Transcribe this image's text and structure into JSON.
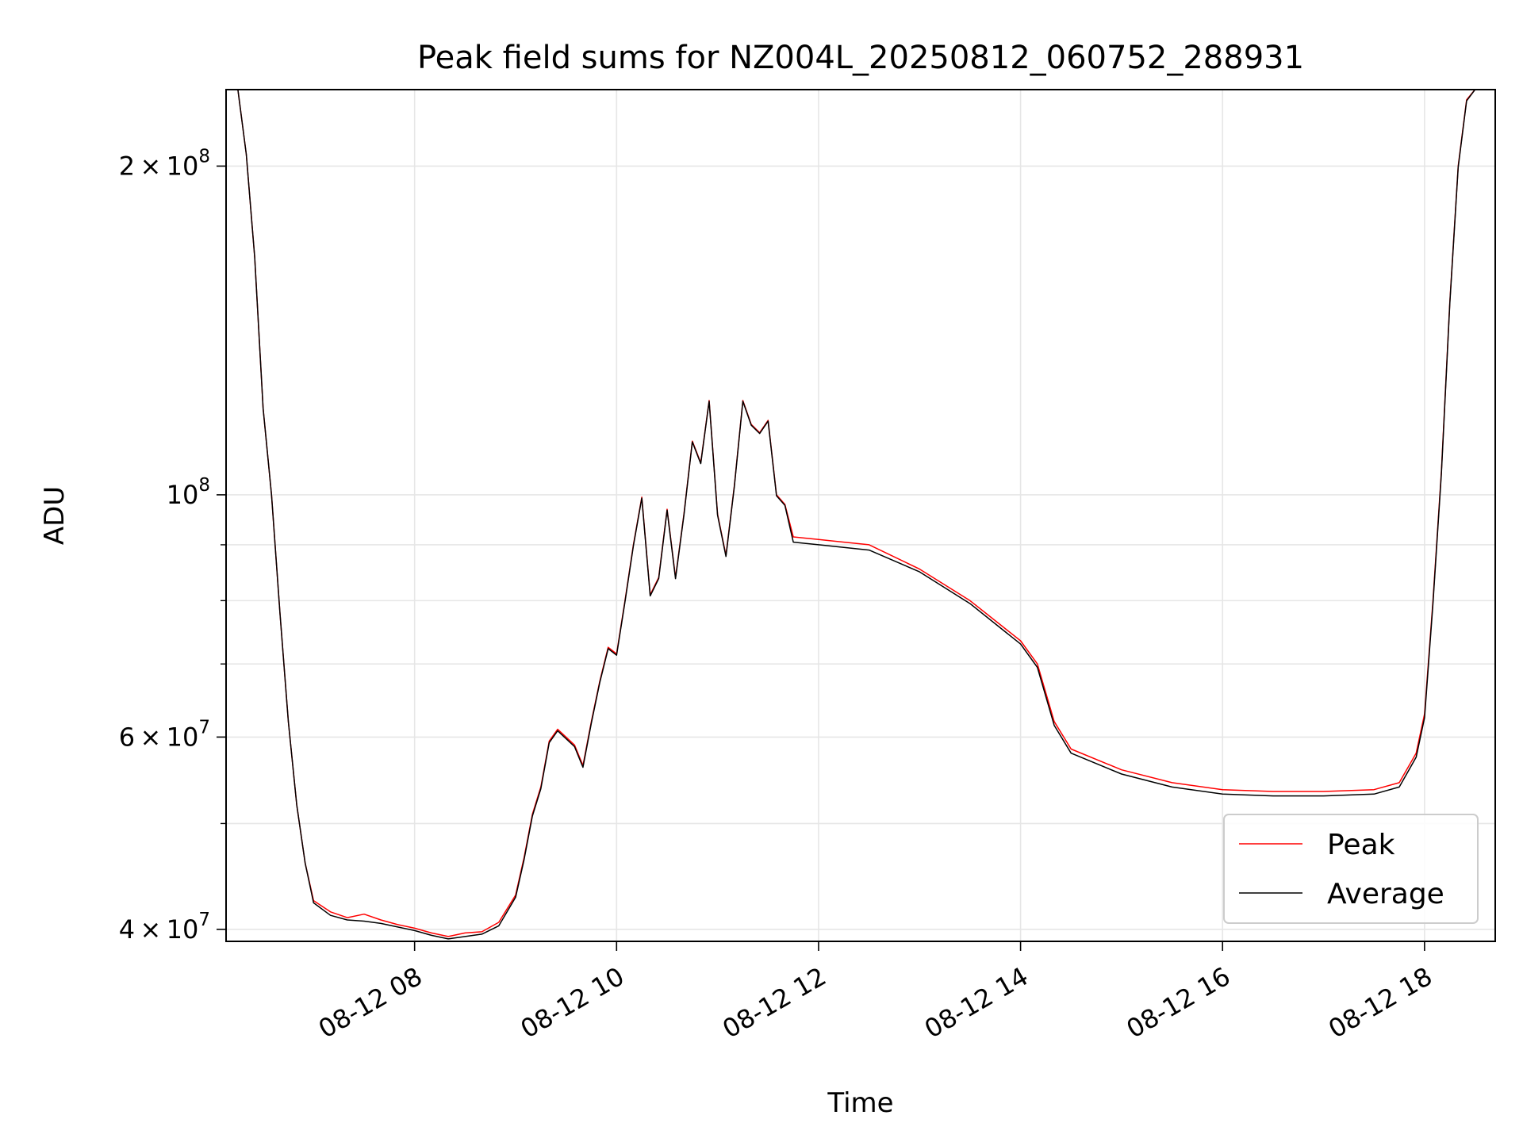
{
  "chart_data": {
    "type": "line",
    "title": "Peak field sums for NZ004L_20250812_060752_288931",
    "xlabel": "Time",
    "ylabel": "ADU",
    "y_scale": "log",
    "x_unit": "hours on 2025-08-12",
    "xlim": [
      "08-12 06:08",
      "08-12 18:42"
    ],
    "ylim": [
      39000000,
      235000000
    ],
    "x_ticks": [
      "08-12 08",
      "08-12 10",
      "08-12 12",
      "08-12 14",
      "08-12 16",
      "08-12 18"
    ],
    "y_ticks": [
      {
        "value": 40000000,
        "base": "4",
        "exp": "7"
      },
      {
        "value": 60000000,
        "base": "6",
        "exp": "7"
      },
      {
        "value": 100000000,
        "base": "10",
        "exp": "8",
        "power_only": true
      },
      {
        "value": 200000000,
        "base": "2",
        "exp": "8"
      }
    ],
    "grid": true,
    "legend_position": "lower-right",
    "series": [
      {
        "name": "Peak",
        "color": "#ff0000",
        "points": [
          [
            "08-12 06:10",
            236000000
          ],
          [
            "08-12 06:15",
            235000000
          ],
          [
            "08-12 06:20",
            205000000
          ],
          [
            "08-12 06:25",
            165000000
          ],
          [
            "08-12 06:30",
            120000000
          ],
          [
            "08-12 06:35",
            100000000
          ],
          [
            "08-12 06:40",
            78000000
          ],
          [
            "08-12 06:45",
            62000000
          ],
          [
            "08-12 06:50",
            52000000
          ],
          [
            "08-12 06:55",
            46000000
          ],
          [
            "08-12 07:00",
            42500000
          ],
          [
            "08-12 07:10",
            41500000
          ],
          [
            "08-12 07:20",
            41000000
          ],
          [
            "08-12 07:30",
            41300000
          ],
          [
            "08-12 07:40",
            40800000
          ],
          [
            "08-12 07:50",
            40400000
          ],
          [
            "08-12 08:00",
            40100000
          ],
          [
            "08-12 08:10",
            39700000
          ],
          [
            "08-12 08:20",
            39400000
          ],
          [
            "08-12 08:30",
            39700000
          ],
          [
            "08-12 08:40",
            39800000
          ],
          [
            "08-12 08:50",
            40600000
          ],
          [
            "08-12 09:00",
            43000000
          ],
          [
            "08-12 09:05",
            46500000
          ],
          [
            "08-12 09:10",
            51000000
          ],
          [
            "08-12 09:15",
            54000000
          ],
          [
            "08-12 09:20",
            59500000
          ],
          [
            "08-12 09:25",
            61000000
          ],
          [
            "08-12 09:30",
            60000000
          ],
          [
            "08-12 09:35",
            59000000
          ],
          [
            "08-12 09:40",
            56500000
          ],
          [
            "08-12 09:45",
            62000000
          ],
          [
            "08-12 09:50",
            67500000
          ],
          [
            "08-12 09:55",
            72500000
          ],
          [
            "08-12 10:00",
            71500000
          ],
          [
            "08-12 10:05",
            80000000
          ],
          [
            "08-12 10:10",
            90000000
          ],
          [
            "08-12 10:15",
            99500000
          ],
          [
            "08-12 10:20",
            81000000
          ],
          [
            "08-12 10:25",
            84000000
          ],
          [
            "08-12 10:30",
            97000000
          ],
          [
            "08-12 10:35",
            84000000
          ],
          [
            "08-12 10:40",
            96000000
          ],
          [
            "08-12 10:45",
            112000000
          ],
          [
            "08-12 10:50",
            107000000
          ],
          [
            "08-12 10:55",
            122000000
          ],
          [
            "08-12 11:00",
            96000000
          ],
          [
            "08-12 11:05",
            88000000
          ],
          [
            "08-12 11:10",
            102000000
          ],
          [
            "08-12 11:15",
            122000000
          ],
          [
            "08-12 11:20",
            116000000
          ],
          [
            "08-12 11:25",
            114000000
          ],
          [
            "08-12 11:30",
            117000000
          ],
          [
            "08-12 11:35",
            100000000
          ],
          [
            "08-12 11:40",
            98000000
          ],
          [
            "08-12 11:45",
            91500000
          ],
          [
            "08-12 12:00",
            91000000
          ],
          [
            "08-12 12:15",
            90500000
          ],
          [
            "08-12 12:30",
            90000000
          ],
          [
            "08-12 13:00",
            85500000
          ],
          [
            "08-12 13:30",
            80000000
          ],
          [
            "08-12 14:00",
            73500000
          ],
          [
            "08-12 14:10",
            70000000
          ],
          [
            "08-12 14:20",
            62000000
          ],
          [
            "08-12 14:30",
            58500000
          ],
          [
            "08-12 15:00",
            56000000
          ],
          [
            "08-12 15:30",
            54500000
          ],
          [
            "08-12 16:00",
            53700000
          ],
          [
            "08-12 16:30",
            53500000
          ],
          [
            "08-12 17:00",
            53500000
          ],
          [
            "08-12 17:30",
            53700000
          ],
          [
            "08-12 17:45",
            54500000
          ],
          [
            "08-12 17:55",
            58000000
          ],
          [
            "08-12 18:00",
            63000000
          ],
          [
            "08-12 18:05",
            80000000
          ],
          [
            "08-12 18:10",
            105000000
          ],
          [
            "08-12 18:15",
            150000000
          ],
          [
            "08-12 18:20",
            200000000
          ],
          [
            "08-12 18:25",
            230000000
          ],
          [
            "08-12 18:30",
            236000000
          ],
          [
            "08-12 18:40",
            236000000
          ]
        ]
      },
      {
        "name": "Average",
        "color": "#000000",
        "points": [
          [
            "08-12 06:10",
            236000000
          ],
          [
            "08-12 06:15",
            235000000
          ],
          [
            "08-12 06:20",
            205000000
          ],
          [
            "08-12 06:25",
            165000000
          ],
          [
            "08-12 06:30",
            120000000
          ],
          [
            "08-12 06:35",
            100000000
          ],
          [
            "08-12 06:40",
            78000000
          ],
          [
            "08-12 06:45",
            62000000
          ],
          [
            "08-12 06:50",
            52000000
          ],
          [
            "08-12 06:55",
            46000000
          ],
          [
            "08-12 07:00",
            42300000
          ],
          [
            "08-12 07:10",
            41200000
          ],
          [
            "08-12 07:20",
            40800000
          ],
          [
            "08-12 07:30",
            40700000
          ],
          [
            "08-12 07:40",
            40500000
          ],
          [
            "08-12 07:50",
            40200000
          ],
          [
            "08-12 08:00",
            39900000
          ],
          [
            "08-12 08:10",
            39500000
          ],
          [
            "08-12 08:20",
            39200000
          ],
          [
            "08-12 08:30",
            39400000
          ],
          [
            "08-12 08:40",
            39600000
          ],
          [
            "08-12 08:50",
            40300000
          ],
          [
            "08-12 09:00",
            42800000
          ],
          [
            "08-12 09:05",
            46300000
          ],
          [
            "08-12 09:10",
            50800000
          ],
          [
            "08-12 09:15",
            53800000
          ],
          [
            "08-12 09:20",
            59300000
          ],
          [
            "08-12 09:25",
            60800000
          ],
          [
            "08-12 09:30",
            59800000
          ],
          [
            "08-12 09:35",
            58800000
          ],
          [
            "08-12 09:40",
            56300000
          ],
          [
            "08-12 09:45",
            61800000
          ],
          [
            "08-12 09:50",
            67300000
          ],
          [
            "08-12 09:55",
            72300000
          ],
          [
            "08-12 10:00",
            71300000
          ],
          [
            "08-12 10:05",
            79800000
          ],
          [
            "08-12 10:10",
            89800000
          ],
          [
            "08-12 10:15",
            99300000
          ],
          [
            "08-12 10:20",
            80800000
          ],
          [
            "08-12 10:25",
            83800000
          ],
          [
            "08-12 10:30",
            96800000
          ],
          [
            "08-12 10:35",
            83800000
          ],
          [
            "08-12 10:40",
            95800000
          ],
          [
            "08-12 10:45",
            111800000
          ],
          [
            "08-12 10:50",
            106800000
          ],
          [
            "08-12 10:55",
            121800000
          ],
          [
            "08-12 11:00",
            95800000
          ],
          [
            "08-12 11:05",
            87800000
          ],
          [
            "08-12 11:10",
            101800000
          ],
          [
            "08-12 11:15",
            121800000
          ],
          [
            "08-12 11:20",
            115800000
          ],
          [
            "08-12 11:25",
            113800000
          ],
          [
            "08-12 11:30",
            116800000
          ],
          [
            "08-12 11:35",
            99800000
          ],
          [
            "08-12 11:40",
            97800000
          ],
          [
            "08-12 11:45",
            90500000
          ],
          [
            "08-12 12:00",
            90000000
          ],
          [
            "08-12 12:15",
            89500000
          ],
          [
            "08-12 12:30",
            89000000
          ],
          [
            "08-12 13:00",
            85000000
          ],
          [
            "08-12 13:30",
            79500000
          ],
          [
            "08-12 14:00",
            73000000
          ],
          [
            "08-12 14:10",
            69500000
          ],
          [
            "08-12 14:20",
            61500000
          ],
          [
            "08-12 14:30",
            58000000
          ],
          [
            "08-12 15:00",
            55500000
          ],
          [
            "08-12 15:30",
            54000000
          ],
          [
            "08-12 16:00",
            53200000
          ],
          [
            "08-12 16:30",
            53000000
          ],
          [
            "08-12 17:00",
            53000000
          ],
          [
            "08-12 17:30",
            53200000
          ],
          [
            "08-12 17:45",
            54000000
          ],
          [
            "08-12 17:55",
            57500000
          ],
          [
            "08-12 18:00",
            62500000
          ],
          [
            "08-12 18:05",
            79500000
          ],
          [
            "08-12 18:10",
            104500000
          ],
          [
            "08-12 18:15",
            149500000
          ],
          [
            "08-12 18:20",
            199500000
          ],
          [
            "08-12 18:25",
            229500000
          ],
          [
            "08-12 18:30",
            235500000
          ],
          [
            "08-12 18:40",
            236000000
          ]
        ]
      }
    ]
  }
}
